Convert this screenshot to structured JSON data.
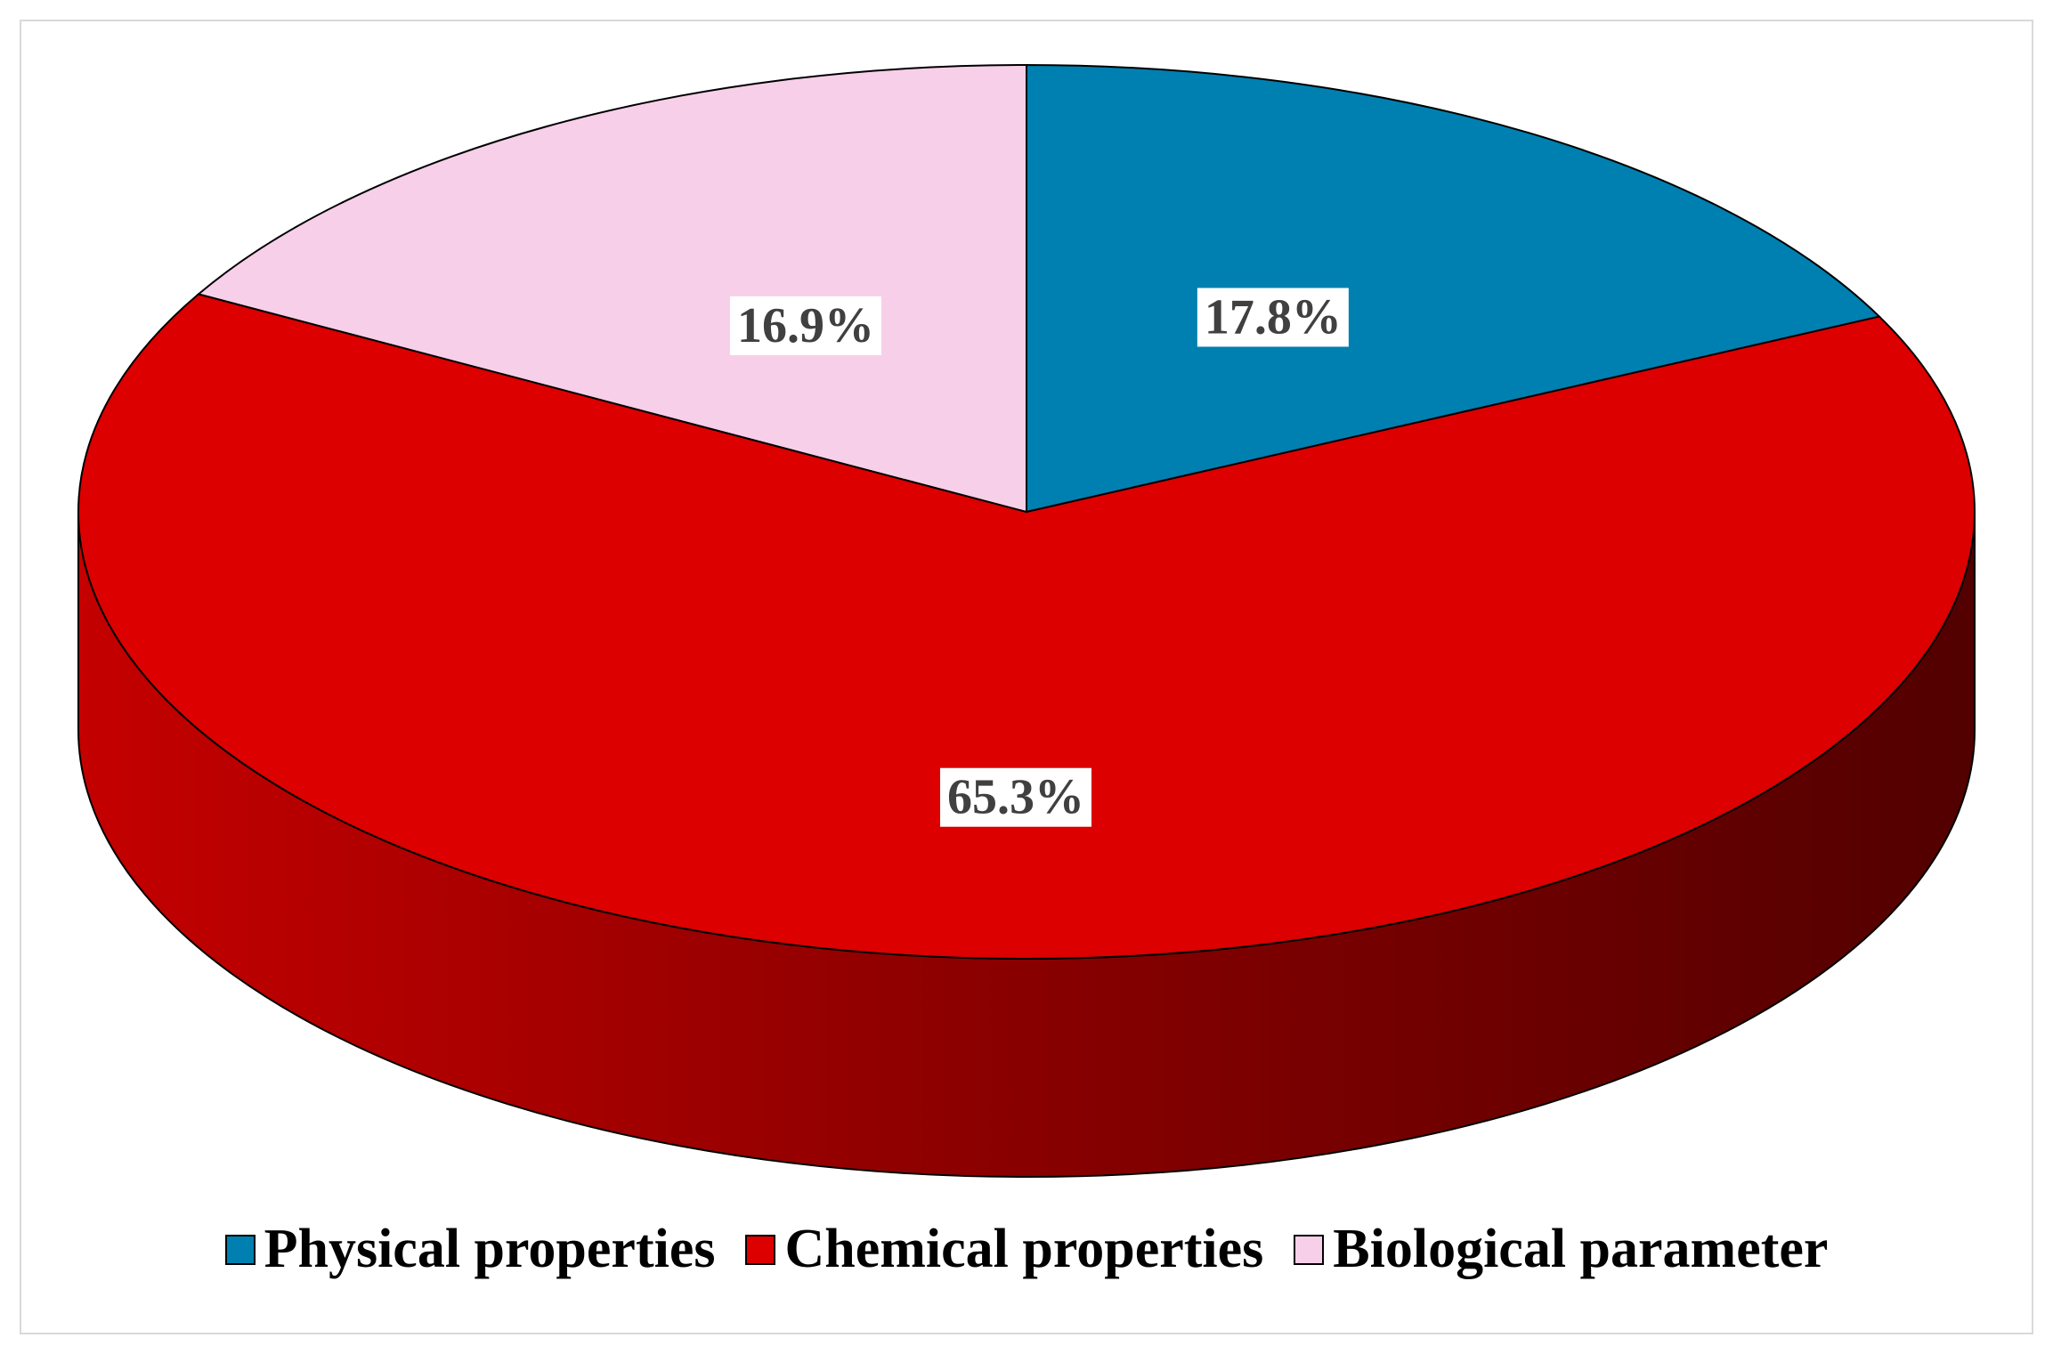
{
  "chart_data": {
    "type": "pie",
    "style": "3d",
    "title": "",
    "categories": [
      "Physical properties",
      "Chemical properties",
      "Biological parameter"
    ],
    "values": [
      17.8,
      65.3,
      16.9
    ],
    "data_labels": [
      "17.8%",
      "65.3%",
      "16.9%"
    ],
    "colors": [
      "#0080b0",
      "#dc0000",
      "#f8cfe8"
    ],
    "start_angle": "12 o'clock",
    "direction": "clockwise",
    "legend_position": "bottom"
  },
  "legend": {
    "items": [
      {
        "label": "Physical properties",
        "color": "#0080b0"
      },
      {
        "label": "Chemical properties",
        "color": "#dc0000"
      },
      {
        "label": "Biological parameter",
        "color": "#f8cfe8"
      }
    ]
  }
}
